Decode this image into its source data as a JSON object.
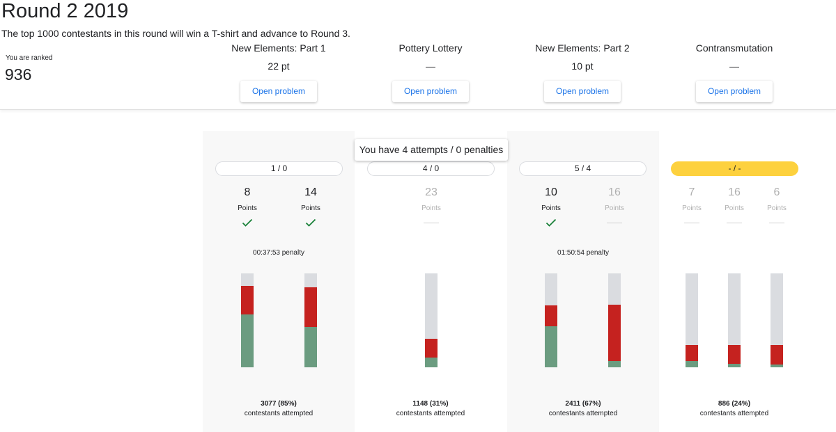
{
  "round": {
    "title": "Round 2 2019",
    "description": "The top 1000 contestants in this round will win a T-shirt and advance to Round 3.",
    "rank_label": "You are ranked",
    "rank_value": "936"
  },
  "problems": [
    {
      "name": "New Elements: Part 1",
      "score": "22 pt",
      "button": "Open problem"
    },
    {
      "name": "Pottery Lottery",
      "score": "—",
      "button": "Open problem"
    },
    {
      "name": "New Elements: Part 2",
      "score": "10 pt",
      "button": "Open problem"
    },
    {
      "name": "Contransmutation",
      "score": "—",
      "button": "Open problem"
    }
  ],
  "tooltip": "You have 4 attempts / 0 penalties",
  "panels": [
    {
      "attempts": "1 / 0",
      "highlight": false,
      "penalty": "00:37:53 penalty",
      "attempted_count": "3077 (85%)",
      "attempted_label": "contestants attempted",
      "subtasks": [
        {
          "points": "8",
          "label": "Points",
          "solved": true,
          "bar": {
            "wrong": 0.3,
            "correct": 0.56
          }
        },
        {
          "points": "14",
          "label": "Points",
          "solved": true,
          "bar": {
            "wrong": 0.42,
            "correct": 0.43
          }
        }
      ]
    },
    {
      "attempts": "4 / 0",
      "highlight": false,
      "penalty": "",
      "attempted_count": "1148 (31%)",
      "attempted_label": "contestants attempted",
      "subtasks": [
        {
          "points": "23",
          "label": "Points",
          "solved": false,
          "bar": {
            "wrong": 0.2,
            "correct": 0.1
          }
        }
      ]
    },
    {
      "attempts": "5 / 4",
      "highlight": false,
      "penalty": "01:50:54 penalty",
      "attempted_count": "2411 (67%)",
      "attempted_label": "contestants attempted",
      "subtasks": [
        {
          "points": "10",
          "label": "Points",
          "solved": true,
          "bar": {
            "wrong": 0.22,
            "correct": 0.44
          }
        },
        {
          "points": "16",
          "label": "Points",
          "solved": false,
          "bar": {
            "wrong": 0.6,
            "correct": 0.07
          }
        }
      ]
    },
    {
      "attempts": "- / -",
      "highlight": true,
      "penalty": "",
      "attempted_count": "886 (24%)",
      "attempted_label": "contestants attempted",
      "subtasks": [
        {
          "points": "7",
          "label": "Points",
          "solved": false,
          "bar": {
            "wrong": 0.17,
            "correct": 0.07
          }
        },
        {
          "points": "16",
          "label": "Points",
          "solved": false,
          "bar": {
            "wrong": 0.2,
            "correct": 0.04
          }
        },
        {
          "points": "6",
          "label": "Points",
          "solved": false,
          "bar": {
            "wrong": 0.21,
            "correct": 0.03
          }
        }
      ]
    }
  ],
  "colors": {
    "accent": "#1a73e8",
    "correct": "#6b9c80",
    "wrong": "#c5221f",
    "unattempted": "#dadce0",
    "check": "#188038",
    "highlight": "#fdd13e"
  }
}
